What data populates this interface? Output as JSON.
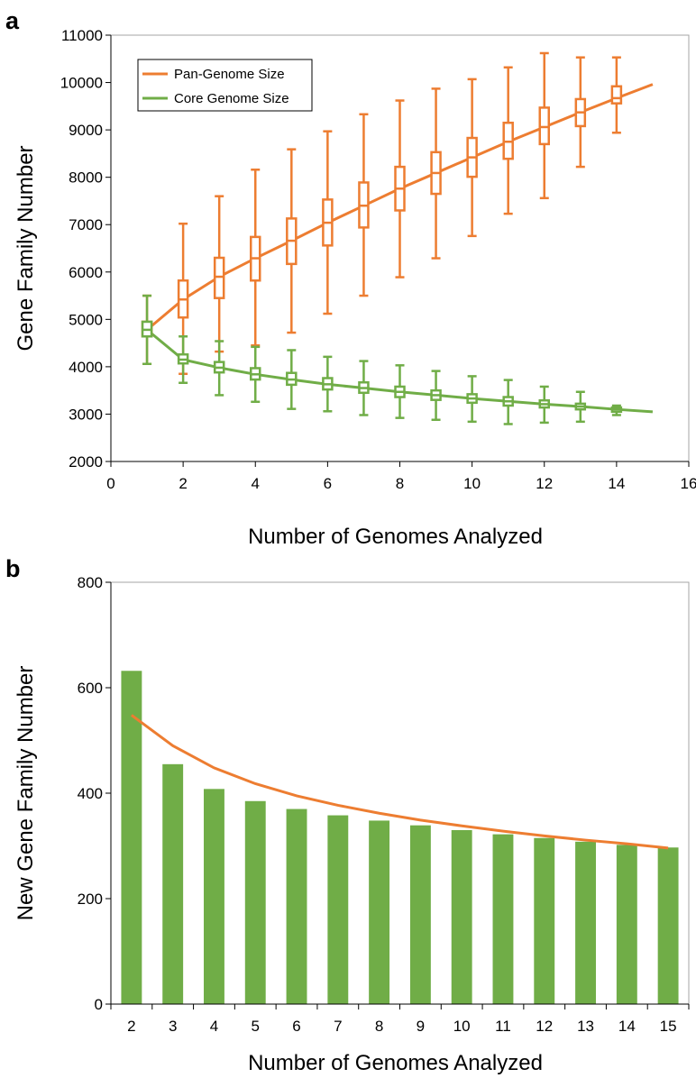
{
  "panels": {
    "a_label": "a",
    "b_label": "b"
  },
  "colors": {
    "pan": "#ED7D31",
    "core": "#70AD47",
    "bars": "#70AD47",
    "fit": "#ED7D31",
    "axis": "#000000",
    "plot_border": "#A6A6A6"
  },
  "chart_data": [
    {
      "type": "line",
      "panel": "a",
      "title": "",
      "xlabel": "Number of Genomes Analyzed",
      "ylabel": "Gene Family Number",
      "xlim": [
        0,
        16
      ],
      "ylim": [
        2000,
        11000
      ],
      "x_ticks": [
        0,
        2,
        4,
        6,
        8,
        10,
        12,
        14,
        16
      ],
      "y_ticks": [
        2000,
        3000,
        4000,
        5000,
        6000,
        7000,
        8000,
        9000,
        10000,
        11000
      ],
      "grid": false,
      "legend_position": "top-left",
      "legend": [
        "Pan-Genome Size",
        "Core Genome Size"
      ],
      "series": [
        {
          "name": "Pan-Genome Size",
          "color": "#ED7D31",
          "fit_x": [
            1,
            2,
            3,
            4,
            5,
            6,
            7,
            8,
            9,
            10,
            11,
            12,
            13,
            14,
            15
          ],
          "fit_y": [
            4780,
            5420,
            5900,
            6290,
            6660,
            7040,
            7400,
            7760,
            8090,
            8420,
            8750,
            9060,
            9370,
            9670,
            9960
          ],
          "boxes": [
            {
              "x": 1,
              "min": 4060,
              "q1": 4640,
              "median": 4780,
              "q3": 4950,
              "max": 5500
            },
            {
              "x": 2,
              "min": 3850,
              "q1": 5040,
              "median": 5420,
              "q3": 5820,
              "max": 7020
            },
            {
              "x": 3,
              "min": 4320,
              "q1": 5450,
              "median": 5900,
              "q3": 6300,
              "max": 7600
            },
            {
              "x": 4,
              "min": 4450,
              "q1": 5820,
              "median": 6290,
              "q3": 6740,
              "max": 8160
            },
            {
              "x": 5,
              "min": 4720,
              "q1": 6170,
              "median": 6660,
              "q3": 7130,
              "max": 8590
            },
            {
              "x": 6,
              "min": 5120,
              "q1": 6560,
              "median": 7040,
              "q3": 7530,
              "max": 8970
            },
            {
              "x": 7,
              "min": 5500,
              "q1": 6940,
              "median": 7400,
              "q3": 7890,
              "max": 9330
            },
            {
              "x": 8,
              "min": 5890,
              "q1": 7300,
              "median": 7760,
              "q3": 8220,
              "max": 9620
            },
            {
              "x": 9,
              "min": 6290,
              "q1": 7650,
              "median": 8090,
              "q3": 8530,
              "max": 9870
            },
            {
              "x": 10,
              "min": 6760,
              "q1": 8010,
              "median": 8420,
              "q3": 8830,
              "max": 10070
            },
            {
              "x": 11,
              "min": 7230,
              "q1": 8390,
              "median": 8750,
              "q3": 9150,
              "max": 10320
            },
            {
              "x": 12,
              "min": 7560,
              "q1": 8700,
              "median": 9060,
              "q3": 9470,
              "max": 10620
            },
            {
              "x": 13,
              "min": 8220,
              "q1": 9080,
              "median": 9370,
              "q3": 9650,
              "max": 10530
            },
            {
              "x": 14,
              "min": 8940,
              "q1": 9560,
              "median": 9670,
              "q3": 9920,
              "max": 10530
            }
          ]
        },
        {
          "name": "Core Genome Size",
          "color": "#70AD47",
          "fit_x": [
            1,
            2,
            3,
            4,
            5,
            6,
            7,
            8,
            9,
            10,
            11,
            12,
            13,
            14,
            15
          ],
          "fit_y": [
            4780,
            4150,
            3980,
            3840,
            3730,
            3630,
            3550,
            3470,
            3400,
            3330,
            3270,
            3210,
            3160,
            3100,
            3050
          ],
          "boxes": [
            {
              "x": 1,
              "min": 4060,
              "q1": 4640,
              "median": 4780,
              "q3": 4950,
              "max": 5500
            },
            {
              "x": 2,
              "min": 3660,
              "q1": 4070,
              "median": 4150,
              "q3": 4260,
              "max": 4640
            },
            {
              "x": 3,
              "min": 3400,
              "q1": 3880,
              "median": 3980,
              "q3": 4100,
              "max": 4540
            },
            {
              "x": 4,
              "min": 3260,
              "q1": 3730,
              "median": 3840,
              "q3": 3970,
              "max": 4420
            },
            {
              "x": 5,
              "min": 3110,
              "q1": 3620,
              "median": 3730,
              "q3": 3870,
              "max": 4350
            },
            {
              "x": 6,
              "min": 3060,
              "q1": 3520,
              "median": 3630,
              "q3": 3760,
              "max": 4210
            },
            {
              "x": 7,
              "min": 2980,
              "q1": 3450,
              "median": 3550,
              "q3": 3670,
              "max": 4120
            },
            {
              "x": 8,
              "min": 2920,
              "q1": 3360,
              "median": 3470,
              "q3": 3580,
              "max": 4030
            },
            {
              "x": 9,
              "min": 2880,
              "q1": 3300,
              "median": 3400,
              "q3": 3500,
              "max": 3910
            },
            {
              "x": 10,
              "min": 2840,
              "q1": 3240,
              "median": 3330,
              "q3": 3420,
              "max": 3800
            },
            {
              "x": 11,
              "min": 2790,
              "q1": 3180,
              "median": 3270,
              "q3": 3360,
              "max": 3720
            },
            {
              "x": 12,
              "min": 2820,
              "q1": 3140,
              "median": 3210,
              "q3": 3290,
              "max": 3580
            },
            {
              "x": 13,
              "min": 2840,
              "q1": 3100,
              "median": 3160,
              "q3": 3220,
              "max": 3470
            },
            {
              "x": 14,
              "min": 2980,
              "q1": 3050,
              "median": 3100,
              "q3": 3140,
              "max": 3180
            }
          ]
        }
      ]
    },
    {
      "type": "bar",
      "panel": "b",
      "title": "",
      "xlabel": "Number of Genomes Analyzed",
      "ylabel": "New Gene Family Number",
      "ylim": [
        0,
        800
      ],
      "y_ticks": [
        0,
        200,
        400,
        600,
        800
      ],
      "grid": false,
      "categories": [
        "2",
        "3",
        "4",
        "5",
        "6",
        "7",
        "8",
        "9",
        "10",
        "11",
        "12",
        "13",
        "14",
        "15"
      ],
      "values": [
        632,
        455,
        408,
        385,
        370,
        358,
        348,
        339,
        330,
        322,
        315,
        308,
        302,
        297
      ],
      "fit": [
        548,
        490,
        448,
        418,
        395,
        377,
        362,
        349,
        338,
        328,
        319,
        311,
        304,
        296
      ]
    }
  ]
}
